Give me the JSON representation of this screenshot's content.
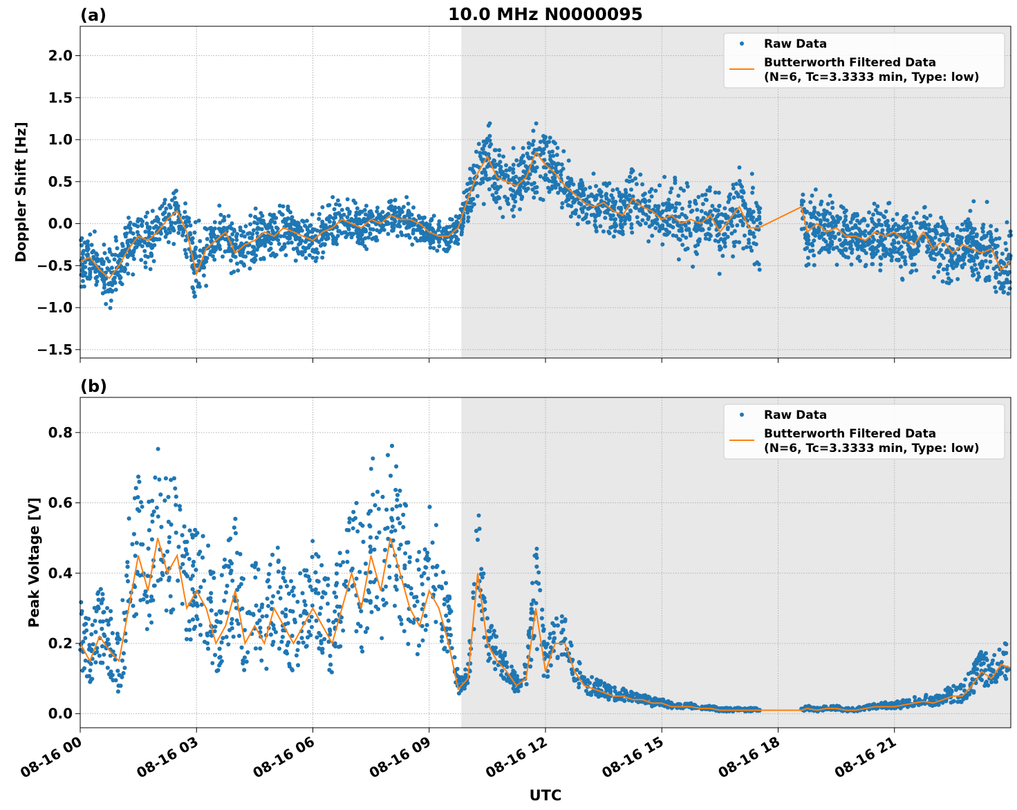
{
  "title": "10.0 MHz N0000095",
  "colors": {
    "raw": "#1f77b4",
    "filtered": "#ff7f0e",
    "shade": "#e8e8e8",
    "grid": "#b0b0b0"
  },
  "x_axis": {
    "label": "UTC",
    "range_hours": [
      0,
      24
    ],
    "ticks": [
      {
        "hour": 0,
        "label": "08-16 00"
      },
      {
        "hour": 3,
        "label": "08-16 03"
      },
      {
        "hour": 6,
        "label": "08-16 06"
      },
      {
        "hour": 9,
        "label": "08-16 09"
      },
      {
        "hour": 12,
        "label": "08-16 12"
      },
      {
        "hour": 15,
        "label": "08-16 15"
      },
      {
        "hour": 18,
        "label": "08-16 18"
      },
      {
        "hour": 21,
        "label": "08-16 21"
      }
    ]
  },
  "legend": {
    "raw": "Raw Data",
    "filtered_line1": "Butterworth Filtered Data",
    "filtered_line2": "(N=6, Tc=3.3333 min, Type: low)",
    "placement": "top-right"
  },
  "chart_data": [
    {
      "type": "scatter",
      "panel": "(a)",
      "ylabel": "Doppler Shift [Hz]",
      "ylim": [
        -1.6,
        2.35
      ],
      "yticks": [
        {
          "v": -1.5,
          "label": "−1.5"
        },
        {
          "v": -1.0,
          "label": "−1.0"
        },
        {
          "v": -0.5,
          "label": "−0.5"
        },
        {
          "v": 0.0,
          "label": "0.0"
        },
        {
          "v": 0.5,
          "label": "0.5"
        },
        {
          "v": 1.0,
          "label": "1.0"
        },
        {
          "v": 1.5,
          "label": "1.5"
        },
        {
          "v": 2.0,
          "label": "2.0"
        }
      ],
      "grid": true,
      "night_shading_hours": [
        9.83,
        24
      ],
      "data_gap_hours": [
        17.55,
        18.6
      ],
      "series": [
        {
          "name": "Butterworth Filtered Data",
          "x": [
            0.0,
            0.25,
            0.5,
            0.75,
            1.0,
            1.25,
            1.5,
            1.75,
            2.0,
            2.25,
            2.5,
            2.75,
            3.0,
            3.25,
            3.5,
            3.75,
            4.0,
            4.25,
            4.5,
            4.75,
            5.0,
            5.25,
            5.5,
            5.75,
            6.0,
            6.25,
            6.5,
            6.75,
            7.0,
            7.25,
            7.5,
            7.75,
            8.0,
            8.25,
            8.5,
            8.75,
            9.0,
            9.25,
            9.5,
            9.75,
            10.0,
            10.25,
            10.5,
            10.75,
            11.0,
            11.25,
            11.5,
            11.75,
            12.0,
            12.25,
            12.5,
            12.75,
            13.0,
            13.25,
            13.5,
            13.75,
            14.0,
            14.25,
            14.5,
            14.75,
            15.0,
            15.25,
            15.5,
            15.75,
            16.0,
            16.25,
            16.5,
            16.75,
            17.0,
            17.25,
            17.5,
            18.6,
            18.75,
            19.0,
            19.25,
            19.5,
            19.75,
            20.0,
            20.25,
            20.5,
            20.75,
            21.0,
            21.25,
            21.5,
            21.75,
            22.0,
            22.25,
            22.5,
            22.75,
            23.0,
            23.25,
            23.5,
            23.75,
            24.0
          ],
          "y": [
            -0.45,
            -0.4,
            -0.55,
            -0.65,
            -0.5,
            -0.3,
            -0.15,
            -0.2,
            -0.1,
            0.05,
            0.15,
            -0.1,
            -0.6,
            -0.3,
            -0.2,
            -0.1,
            -0.35,
            -0.25,
            -0.2,
            -0.1,
            -0.15,
            -0.05,
            -0.1,
            -0.15,
            -0.2,
            -0.1,
            -0.05,
            0.05,
            0.0,
            -0.05,
            0.05,
            0.0,
            0.1,
            0.05,
            0.05,
            0.0,
            -0.1,
            -0.15,
            -0.15,
            -0.05,
            0.3,
            0.6,
            0.8,
            0.55,
            0.5,
            0.45,
            0.55,
            0.85,
            0.7,
            0.6,
            0.45,
            0.35,
            0.25,
            0.2,
            0.25,
            0.15,
            0.1,
            0.3,
            0.2,
            0.15,
            0.05,
            0.1,
            0.0,
            0.05,
            0.0,
            0.1,
            -0.1,
            0.05,
            0.2,
            -0.05,
            -0.05,
            0.2,
            -0.1,
            0.0,
            -0.1,
            -0.05,
            -0.15,
            -0.15,
            -0.2,
            -0.1,
            -0.15,
            -0.1,
            -0.2,
            -0.25,
            -0.1,
            -0.3,
            -0.2,
            -0.35,
            -0.25,
            -0.3,
            -0.35,
            -0.3,
            -0.55,
            -0.45
          ]
        },
        {
          "name": "Raw Data",
          "spread": [
            0.3,
            0.3,
            0.3,
            0.35,
            0.35,
            0.35,
            0.3,
            0.3,
            0.3,
            0.3,
            0.3,
            0.35,
            0.45,
            0.35,
            0.3,
            0.3,
            0.3,
            0.3,
            0.3,
            0.3,
            0.3,
            0.25,
            0.25,
            0.25,
            0.25,
            0.25,
            0.25,
            0.25,
            0.25,
            0.25,
            0.25,
            0.2,
            0.2,
            0.2,
            0.2,
            0.2,
            0.2,
            0.2,
            0.2,
            0.2,
            0.3,
            0.35,
            0.4,
            0.35,
            0.35,
            0.35,
            0.35,
            0.45,
            0.4,
            0.35,
            0.3,
            0.3,
            0.3,
            0.3,
            0.3,
            0.3,
            0.3,
            0.35,
            0.35,
            0.35,
            0.35,
            0.4,
            0.4,
            0.4,
            0.4,
            0.45,
            0.45,
            0.45,
            0.45,
            0.45,
            0.45,
            0.4,
            0.4,
            0.35,
            0.35,
            0.35,
            0.35,
            0.35,
            0.35,
            0.35,
            0.35,
            0.35,
            0.4,
            0.4,
            0.4,
            0.4,
            0.45,
            0.4,
            0.4,
            0.4,
            0.4,
            0.4,
            0.45,
            0.45
          ]
        }
      ]
    },
    {
      "type": "scatter",
      "panel": "(b)",
      "ylabel": "Peak Voltage [V]",
      "ylim": [
        -0.04,
        0.9
      ],
      "yticks": [
        {
          "v": 0.0,
          "label": "0.0"
        },
        {
          "v": 0.2,
          "label": "0.2"
        },
        {
          "v": 0.4,
          "label": "0.4"
        },
        {
          "v": 0.6,
          "label": "0.6"
        },
        {
          "v": 0.8,
          "label": "0.8"
        }
      ],
      "grid": true,
      "night_shading_hours": [
        9.83,
        24
      ],
      "data_gap_hours": [
        17.55,
        18.6
      ],
      "series": [
        {
          "name": "Butterworth Filtered Data",
          "x": [
            0.0,
            0.25,
            0.5,
            0.75,
            1.0,
            1.25,
            1.5,
            1.75,
            2.0,
            2.25,
            2.5,
            2.75,
            3.0,
            3.25,
            3.5,
            3.75,
            4.0,
            4.25,
            4.5,
            4.75,
            5.0,
            5.25,
            5.5,
            5.75,
            6.0,
            6.25,
            6.5,
            6.75,
            7.0,
            7.25,
            7.5,
            7.75,
            8.0,
            8.25,
            8.5,
            8.75,
            9.0,
            9.25,
            9.5,
            9.75,
            10.0,
            10.25,
            10.5,
            10.75,
            11.0,
            11.25,
            11.5,
            11.75,
            12.0,
            12.25,
            12.5,
            12.75,
            13.0,
            13.25,
            13.5,
            13.75,
            14.0,
            14.25,
            14.5,
            14.75,
            15.0,
            15.25,
            15.5,
            15.75,
            16.0,
            16.25,
            16.5,
            16.75,
            17.0,
            17.25,
            17.5,
            18.6,
            18.75,
            19.0,
            19.25,
            19.5,
            19.75,
            20.0,
            20.25,
            20.5,
            20.75,
            21.0,
            21.25,
            21.5,
            21.75,
            22.0,
            22.25,
            22.5,
            22.75,
            23.0,
            23.25,
            23.5,
            23.75,
            24.0
          ],
          "y": [
            0.2,
            0.15,
            0.22,
            0.18,
            0.15,
            0.3,
            0.45,
            0.35,
            0.5,
            0.4,
            0.45,
            0.3,
            0.35,
            0.3,
            0.2,
            0.25,
            0.35,
            0.2,
            0.25,
            0.2,
            0.3,
            0.25,
            0.2,
            0.25,
            0.3,
            0.25,
            0.2,
            0.3,
            0.4,
            0.3,
            0.45,
            0.35,
            0.5,
            0.4,
            0.3,
            0.25,
            0.35,
            0.3,
            0.2,
            0.07,
            0.1,
            0.4,
            0.2,
            0.15,
            0.12,
            0.08,
            0.1,
            0.3,
            0.12,
            0.2,
            0.2,
            0.12,
            0.08,
            0.07,
            0.06,
            0.05,
            0.05,
            0.04,
            0.04,
            0.03,
            0.03,
            0.02,
            0.02,
            0.02,
            0.015,
            0.015,
            0.01,
            0.01,
            0.01,
            0.01,
            0.01,
            0.01,
            0.015,
            0.01,
            0.015,
            0.015,
            0.01,
            0.01,
            0.015,
            0.02,
            0.02,
            0.02,
            0.025,
            0.03,
            0.035,
            0.03,
            0.04,
            0.05,
            0.05,
            0.08,
            0.12,
            0.1,
            0.14,
            0.13
          ]
        },
        {
          "name": "Raw Data",
          "spread": [
            0.15,
            0.15,
            0.18,
            0.18,
            0.2,
            0.3,
            0.3,
            0.3,
            0.35,
            0.3,
            0.3,
            0.25,
            0.25,
            0.25,
            0.2,
            0.25,
            0.25,
            0.2,
            0.25,
            0.2,
            0.25,
            0.2,
            0.2,
            0.2,
            0.25,
            0.2,
            0.2,
            0.25,
            0.3,
            0.3,
            0.35,
            0.35,
            0.35,
            0.3,
            0.3,
            0.25,
            0.3,
            0.25,
            0.2,
            0.04,
            0.05,
            0.25,
            0.1,
            0.08,
            0.06,
            0.05,
            0.06,
            0.25,
            0.08,
            0.1,
            0.1,
            0.07,
            0.05,
            0.04,
            0.04,
            0.03,
            0.03,
            0.025,
            0.02,
            0.02,
            0.015,
            0.015,
            0.012,
            0.012,
            0.01,
            0.01,
            0.008,
            0.008,
            0.008,
            0.008,
            0.008,
            0.008,
            0.01,
            0.008,
            0.01,
            0.01,
            0.008,
            0.008,
            0.01,
            0.012,
            0.015,
            0.015,
            0.018,
            0.02,
            0.025,
            0.02,
            0.03,
            0.04,
            0.04,
            0.06,
            0.08,
            0.07,
            0.08,
            0.08
          ]
        }
      ]
    }
  ]
}
